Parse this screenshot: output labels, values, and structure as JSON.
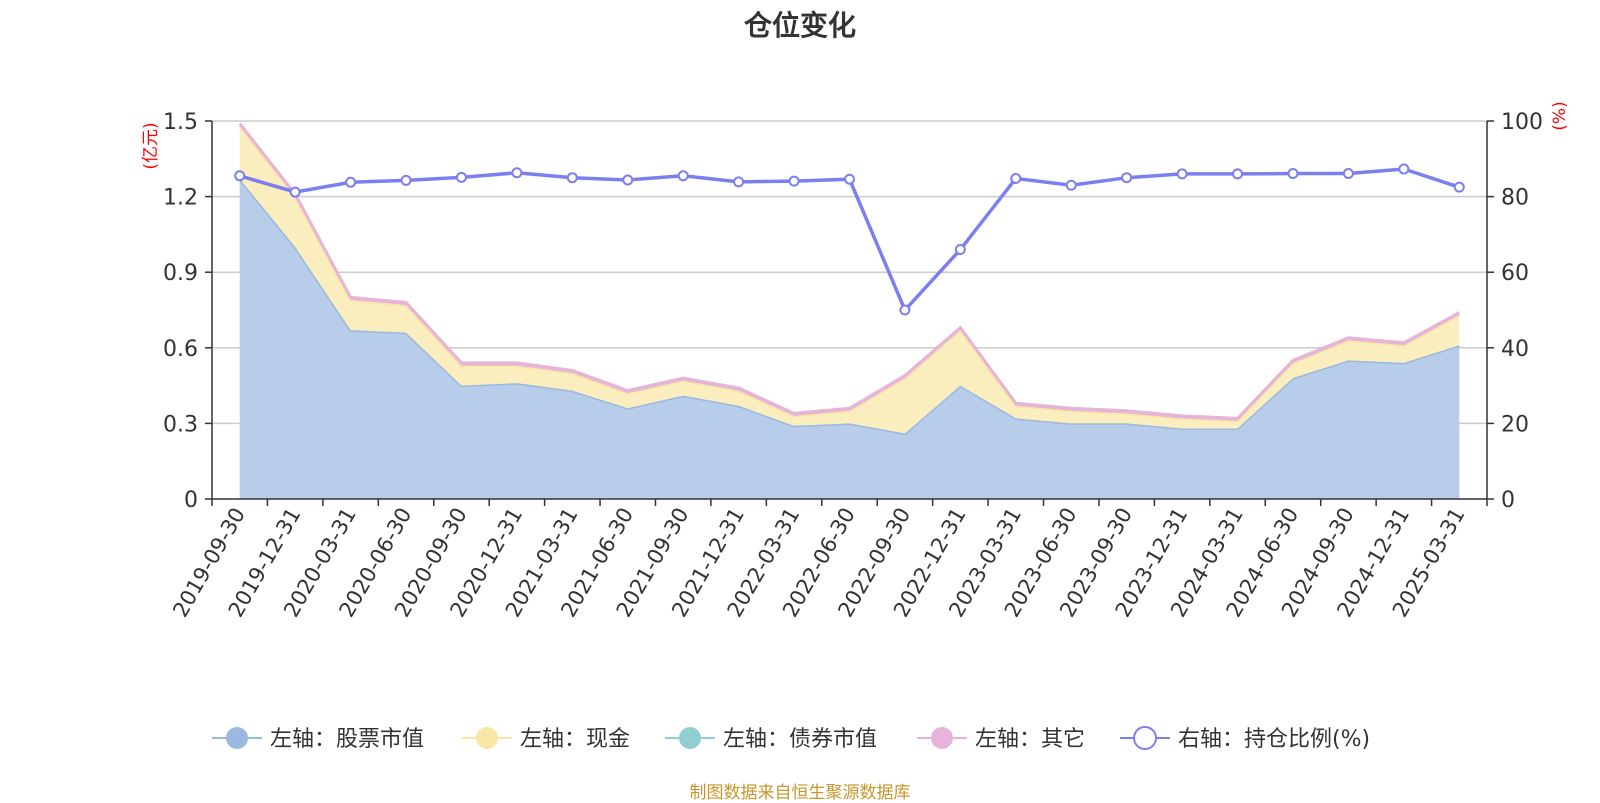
{
  "chart_data": {
    "type": "area",
    "title": "仓位变化",
    "left_axis": {
      "unit": "(亿元)",
      "ylim": [
        0,
        1.5
      ],
      "ticks": [
        0,
        0.3,
        0.6,
        0.9,
        1.2,
        1.5
      ],
      "tick_labels": [
        "0",
        "0.3",
        "0.6",
        "0.9",
        "1.2",
        "1.5"
      ]
    },
    "right_axis": {
      "unit": "(%)",
      "ylim": [
        0,
        100
      ],
      "ticks": [
        0,
        20,
        40,
        60,
        80,
        100
      ],
      "tick_labels": [
        "0",
        "20",
        "40",
        "60",
        "80",
        "100"
      ]
    },
    "categories": [
      "2019-09-30",
      "2019-12-31",
      "2020-03-31",
      "2020-06-30",
      "2020-09-30",
      "2020-12-31",
      "2021-03-31",
      "2021-06-30",
      "2021-09-30",
      "2021-12-31",
      "2022-03-31",
      "2022-06-30",
      "2022-09-30",
      "2022-12-31",
      "2023-03-31",
      "2023-06-30",
      "2023-09-30",
      "2023-12-31",
      "2024-03-31",
      "2024-06-30",
      "2024-09-30",
      "2024-12-31",
      "2025-03-31"
    ],
    "series": [
      {
        "name": "左轴：股票市值",
        "axis": "left",
        "stack": true,
        "color": "#9ab8e0",
        "fill": "#b8cdea",
        "values": [
          1.27,
          1.0,
          0.67,
          0.66,
          0.45,
          0.46,
          0.43,
          0.36,
          0.41,
          0.37,
          0.29,
          0.3,
          0.26,
          0.45,
          0.32,
          0.3,
          0.3,
          0.28,
          0.28,
          0.48,
          0.55,
          0.54,
          0.61
        ]
      },
      {
        "name": "左轴：现金",
        "axis": "left",
        "stack": true,
        "color": "#f7e6a5",
        "fill": "#faedbe",
        "values": [
          0.21,
          0.2,
          0.12,
          0.11,
          0.08,
          0.07,
          0.07,
          0.06,
          0.06,
          0.06,
          0.04,
          0.05,
          0.22,
          0.22,
          0.05,
          0.05,
          0.04,
          0.04,
          0.03,
          0.06,
          0.08,
          0.07,
          0.12
        ]
      },
      {
        "name": "左轴：债券市值",
        "axis": "left",
        "stack": true,
        "color": "#8fcfcf",
        "fill": "#a9dada",
        "values": [
          0,
          0,
          0,
          0,
          0,
          0,
          0,
          0,
          0,
          0,
          0,
          0,
          0,
          0,
          0,
          0,
          0,
          0,
          0,
          0,
          0,
          0,
          0
        ]
      },
      {
        "name": "左轴：其它",
        "axis": "left",
        "stack": true,
        "color": "#e6b4d8",
        "fill": "#e6b4d8",
        "values": [
          0.01,
          0.01,
          0.01,
          0.01,
          0.01,
          0.01,
          0.01,
          0.01,
          0.01,
          0.01,
          0.01,
          0.01,
          0.01,
          0.01,
          0.01,
          0.01,
          0.01,
          0.01,
          0.01,
          0.01,
          0.01,
          0.01,
          0.01
        ]
      },
      {
        "name": "右轴：持仓比例(%)",
        "axis": "right",
        "type": "line",
        "color": "#7b7ff0",
        "values": [
          85.5,
          81.2,
          83.8,
          84.3,
          85.1,
          86.3,
          85.0,
          84.4,
          85.5,
          83.9,
          84.1,
          84.6,
          50.0,
          66.0,
          84.8,
          83.0,
          85.0,
          86.0,
          86.0,
          86.1,
          86.1,
          87.3,
          82.5
        ]
      }
    ],
    "grid": true,
    "legend_position": "bottom"
  },
  "source_note": "制图数据来自恒生聚源数据库"
}
